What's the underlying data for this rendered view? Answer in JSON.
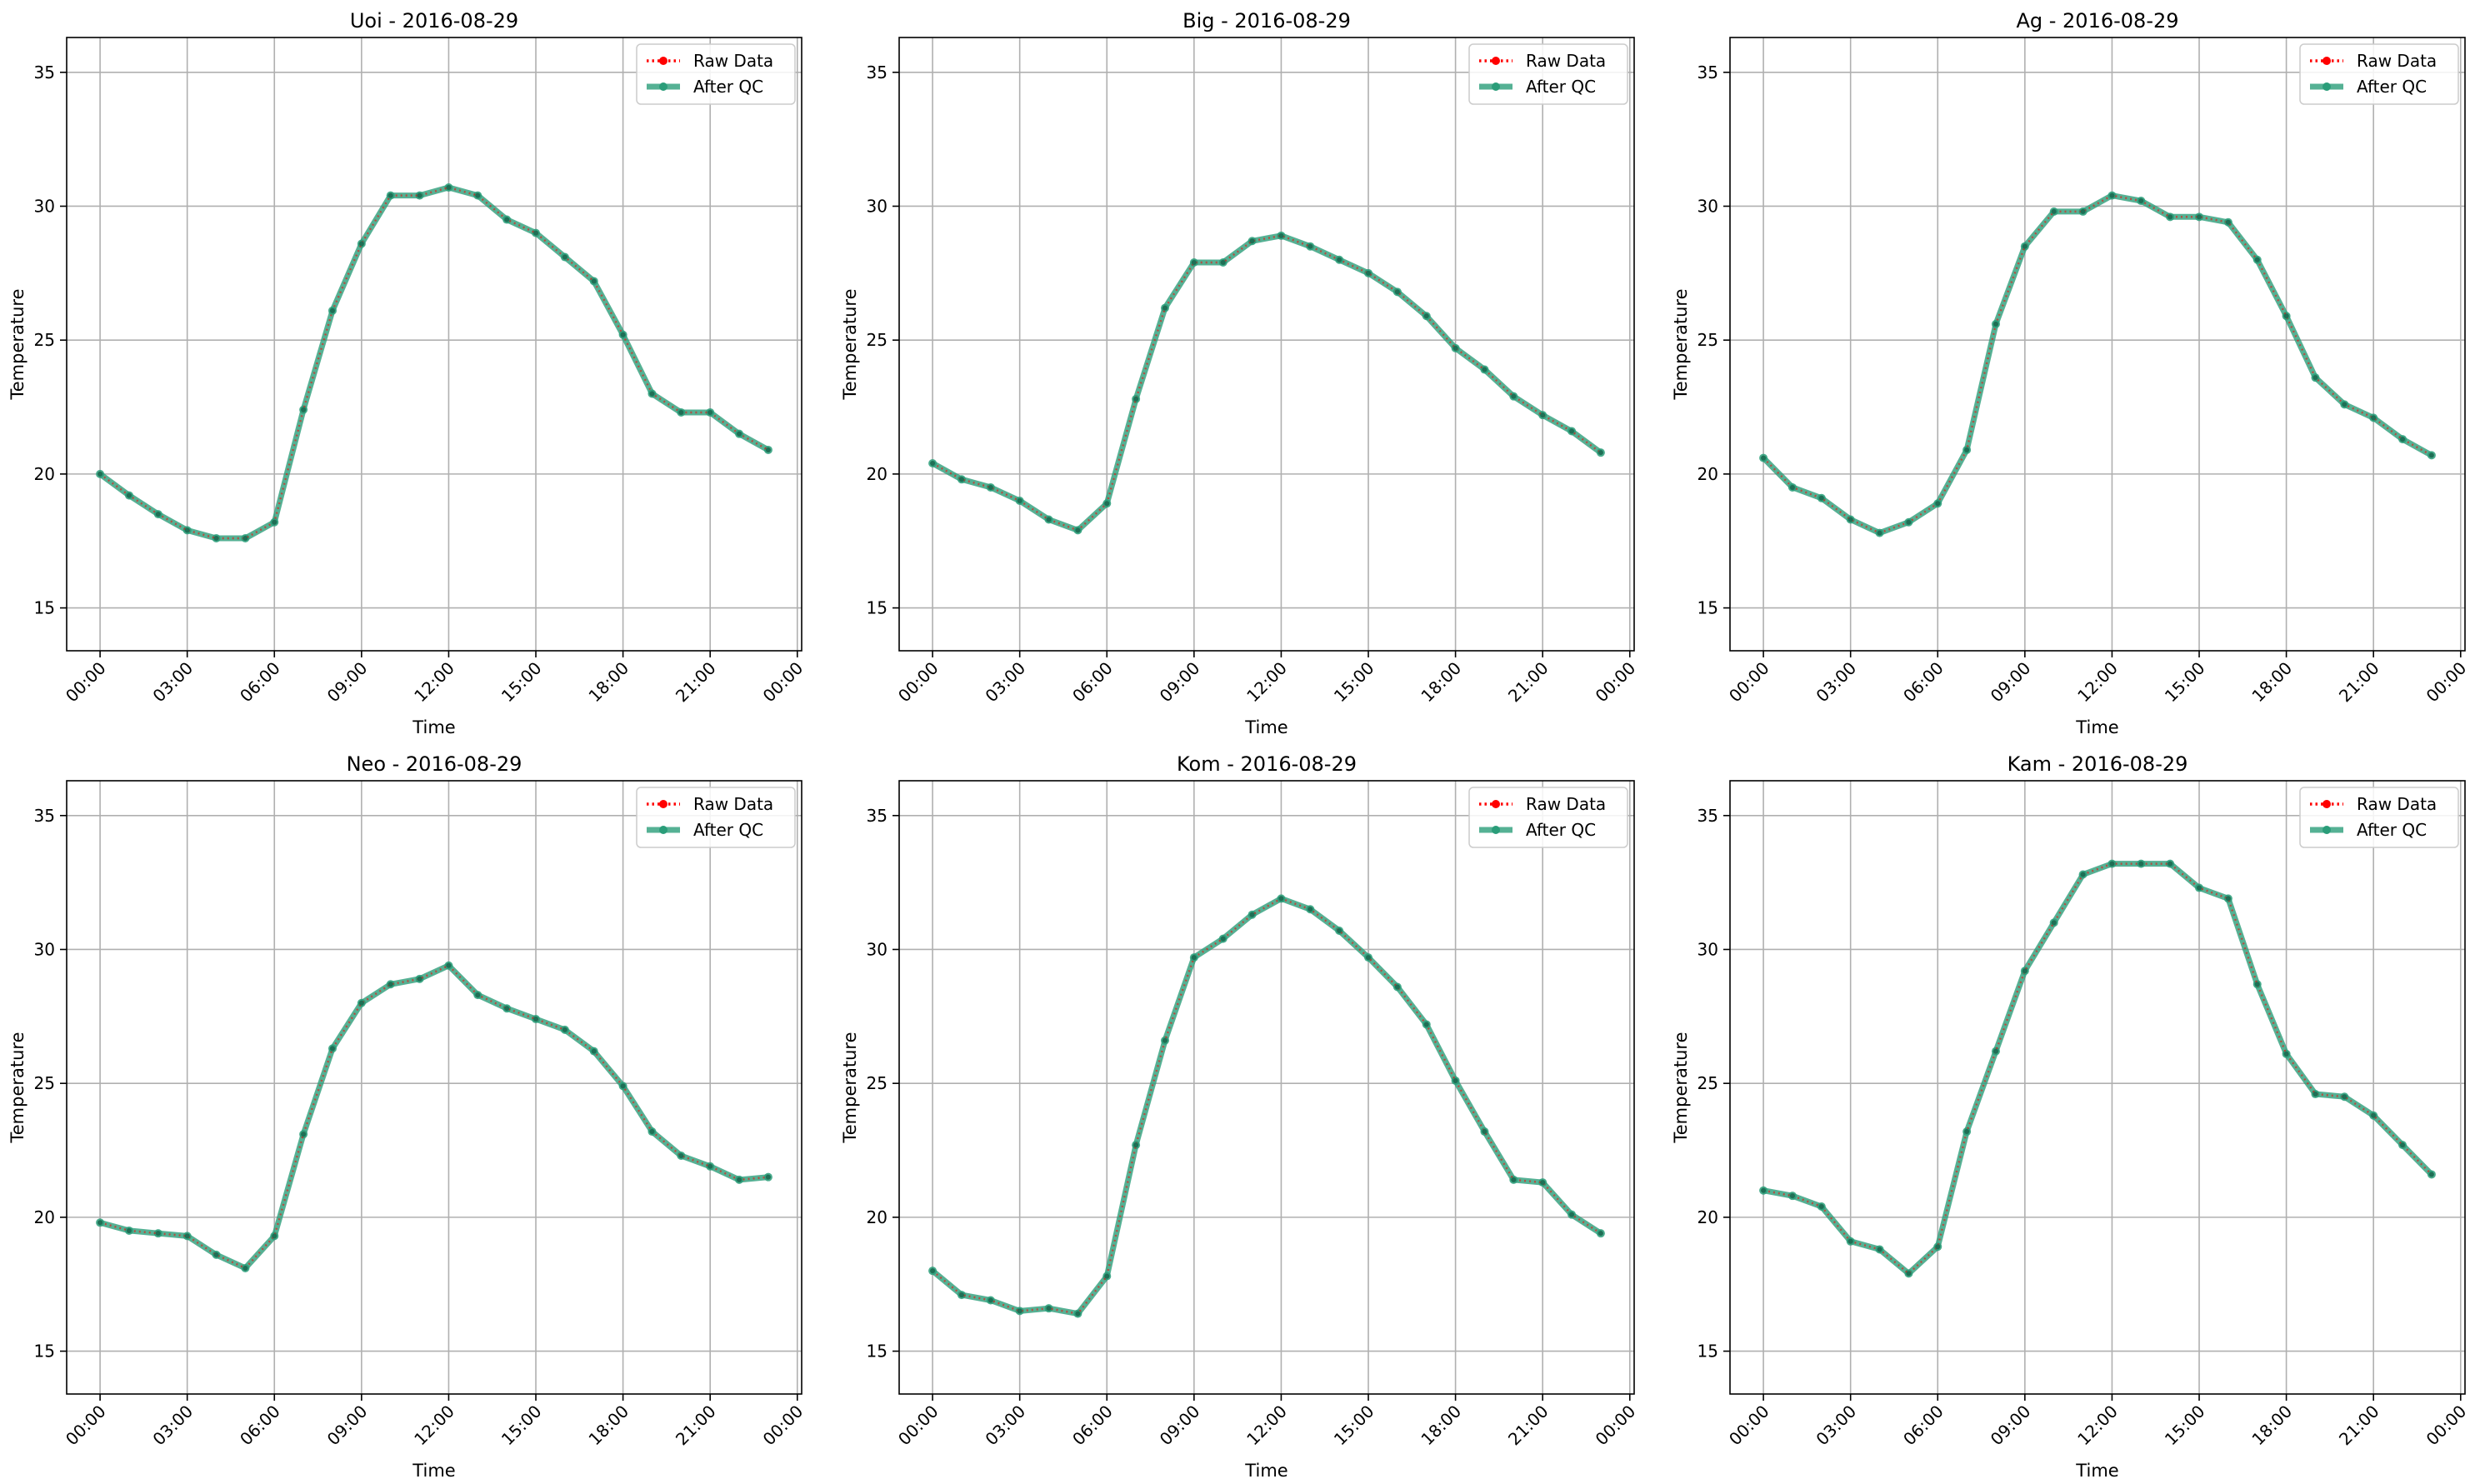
{
  "chart_data": [
    {
      "type": "line",
      "title": "Uoi - 2016-08-29",
      "xlabel": "Time",
      "ylabel": "Temperature",
      "xticks": [
        "00:00",
        "03:00",
        "06:00",
        "09:00",
        "12:00",
        "15:00",
        "18:00",
        "21:00",
        "00:00"
      ],
      "yticks": [
        15,
        20,
        25,
        30,
        35
      ],
      "ylim": [
        13.4,
        36.3
      ],
      "xlim_hours": [
        -1.15,
        24.15
      ],
      "grid": true,
      "legend_position": "top-right",
      "x_hours": [
        0,
        1,
        2,
        3,
        4,
        5,
        6,
        7,
        8,
        9,
        10,
        11,
        12,
        13,
        14,
        15,
        16,
        17,
        18,
        19,
        20,
        21,
        22,
        23
      ],
      "series": [
        {
          "name": "Raw Data",
          "color": "#ff0000",
          "style": "dotted",
          "values": [
            20.0,
            19.2,
            18.5,
            17.9,
            17.6,
            17.6,
            18.2,
            22.4,
            26.1,
            28.6,
            30.4,
            30.4,
            30.7,
            30.4,
            29.5,
            29.0,
            28.1,
            27.2,
            25.2,
            23.0,
            22.3,
            22.3,
            21.5,
            20.9
          ]
        },
        {
          "name": "After QC",
          "color": "#2a9d79",
          "style": "solid",
          "values": [
            20.0,
            19.2,
            18.5,
            17.9,
            17.6,
            17.6,
            18.2,
            22.4,
            26.1,
            28.6,
            30.4,
            30.4,
            30.7,
            30.4,
            29.5,
            29.0,
            28.1,
            27.2,
            25.2,
            23.0,
            22.3,
            22.3,
            21.5,
            20.9
          ]
        }
      ]
    },
    {
      "type": "line",
      "title": "Big - 2016-08-29",
      "xlabel": "Time",
      "ylabel": "Temperature",
      "xticks": [
        "00:00",
        "03:00",
        "06:00",
        "09:00",
        "12:00",
        "15:00",
        "18:00",
        "21:00",
        "00:00"
      ],
      "yticks": [
        15,
        20,
        25,
        30,
        35
      ],
      "ylim": [
        13.4,
        36.3
      ],
      "xlim_hours": [
        -1.15,
        24.15
      ],
      "grid": true,
      "legend_position": "top-right",
      "x_hours": [
        0,
        1,
        2,
        3,
        4,
        5,
        6,
        7,
        8,
        9,
        10,
        11,
        12,
        13,
        14,
        15,
        16,
        17,
        18,
        19,
        20,
        21,
        22,
        23
      ],
      "series": [
        {
          "name": "Raw Data",
          "color": "#ff0000",
          "style": "dotted",
          "values": [
            20.4,
            19.8,
            19.5,
            19.0,
            18.3,
            17.9,
            18.9,
            22.8,
            26.2,
            27.9,
            27.9,
            28.7,
            28.9,
            28.5,
            28.0,
            27.5,
            26.8,
            25.9,
            24.7,
            23.9,
            22.9,
            22.2,
            21.6,
            20.8
          ]
        },
        {
          "name": "After QC",
          "color": "#2a9d79",
          "style": "solid",
          "values": [
            20.4,
            19.8,
            19.5,
            19.0,
            18.3,
            17.9,
            18.9,
            22.8,
            26.2,
            27.9,
            27.9,
            28.7,
            28.9,
            28.5,
            28.0,
            27.5,
            26.8,
            25.9,
            24.7,
            23.9,
            22.9,
            22.2,
            21.6,
            20.8
          ]
        }
      ]
    },
    {
      "type": "line",
      "title": "Ag - 2016-08-29",
      "xlabel": "Time",
      "ylabel": "Temperature",
      "xticks": [
        "00:00",
        "03:00",
        "06:00",
        "09:00",
        "12:00",
        "15:00",
        "18:00",
        "21:00",
        "00:00"
      ],
      "yticks": [
        15,
        20,
        25,
        30,
        35
      ],
      "ylim": [
        13.4,
        36.3
      ],
      "xlim_hours": [
        -1.15,
        24.15
      ],
      "grid": true,
      "legend_position": "top-right",
      "x_hours": [
        0,
        1,
        2,
        3,
        4,
        5,
        6,
        7,
        8,
        9,
        10,
        11,
        12,
        13,
        14,
        15,
        16,
        17,
        18,
        19,
        20,
        21,
        22,
        23
      ],
      "series": [
        {
          "name": "Raw Data",
          "color": "#ff0000",
          "style": "dotted",
          "values": [
            20.6,
            19.5,
            19.1,
            18.3,
            17.8,
            18.2,
            18.9,
            20.9,
            25.6,
            28.5,
            29.8,
            29.8,
            30.4,
            30.2,
            29.6,
            29.6,
            29.4,
            28.0,
            25.9,
            23.6,
            22.6,
            22.1,
            21.3,
            20.7
          ]
        },
        {
          "name": "After QC",
          "color": "#2a9d79",
          "style": "solid",
          "values": [
            20.6,
            19.5,
            19.1,
            18.3,
            17.8,
            18.2,
            18.9,
            20.9,
            25.6,
            28.5,
            29.8,
            29.8,
            30.4,
            30.2,
            29.6,
            29.6,
            29.4,
            28.0,
            25.9,
            23.6,
            22.6,
            22.1,
            21.3,
            20.7
          ]
        }
      ]
    },
    {
      "type": "line",
      "title": "Neo - 2016-08-29",
      "xlabel": "Time",
      "ylabel": "Temperature",
      "xticks": [
        "00:00",
        "03:00",
        "06:00",
        "09:00",
        "12:00",
        "15:00",
        "18:00",
        "21:00",
        "00:00"
      ],
      "yticks": [
        15,
        20,
        25,
        30,
        35
      ],
      "ylim": [
        13.4,
        36.3
      ],
      "xlim_hours": [
        -1.15,
        24.15
      ],
      "grid": true,
      "legend_position": "top-right",
      "x_hours": [
        0,
        1,
        2,
        3,
        4,
        5,
        6,
        7,
        8,
        9,
        10,
        11,
        12,
        13,
        14,
        15,
        16,
        17,
        18,
        19,
        20,
        21,
        22,
        23
      ],
      "series": [
        {
          "name": "Raw Data",
          "color": "#ff0000",
          "style": "dotted",
          "values": [
            19.8,
            19.5,
            19.4,
            19.3,
            18.6,
            18.1,
            19.3,
            23.1,
            26.3,
            28.0,
            28.7,
            28.9,
            29.4,
            28.3,
            27.8,
            27.4,
            27.0,
            26.2,
            24.9,
            23.2,
            22.3,
            21.9,
            21.4,
            21.5
          ]
        },
        {
          "name": "After QC",
          "color": "#2a9d79",
          "style": "solid",
          "values": [
            19.8,
            19.5,
            19.4,
            19.3,
            18.6,
            18.1,
            19.3,
            23.1,
            26.3,
            28.0,
            28.7,
            28.9,
            29.4,
            28.3,
            27.8,
            27.4,
            27.0,
            26.2,
            24.9,
            23.2,
            22.3,
            21.9,
            21.4,
            21.5
          ]
        }
      ]
    },
    {
      "type": "line",
      "title": "Kom - 2016-08-29",
      "xlabel": "Time",
      "ylabel": "Temperature",
      "xticks": [
        "00:00",
        "03:00",
        "06:00",
        "09:00",
        "12:00",
        "15:00",
        "18:00",
        "21:00",
        "00:00"
      ],
      "yticks": [
        15,
        20,
        25,
        30,
        35
      ],
      "ylim": [
        13.4,
        36.3
      ],
      "xlim_hours": [
        -1.15,
        24.15
      ],
      "grid": true,
      "legend_position": "top-right",
      "x_hours": [
        0,
        1,
        2,
        3,
        4,
        5,
        6,
        7,
        8,
        9,
        10,
        11,
        12,
        13,
        14,
        15,
        16,
        17,
        18,
        19,
        20,
        21,
        22,
        23
      ],
      "series": [
        {
          "name": "Raw Data",
          "color": "#ff0000",
          "style": "dotted",
          "values": [
            18.0,
            17.1,
            16.9,
            16.5,
            16.6,
            16.4,
            17.8,
            22.7,
            26.6,
            29.7,
            30.4,
            31.3,
            31.9,
            31.5,
            30.7,
            29.7,
            28.6,
            27.2,
            25.1,
            23.2,
            21.4,
            21.3,
            20.1,
            19.4
          ]
        },
        {
          "name": "After QC",
          "color": "#2a9d79",
          "style": "solid",
          "values": [
            18.0,
            17.1,
            16.9,
            16.5,
            16.6,
            16.4,
            17.8,
            22.7,
            26.6,
            29.7,
            30.4,
            31.3,
            31.9,
            31.5,
            30.7,
            29.7,
            28.6,
            27.2,
            25.1,
            23.2,
            21.4,
            21.3,
            20.1,
            19.4
          ]
        }
      ]
    },
    {
      "type": "line",
      "title": "Kam - 2016-08-29",
      "xlabel": "Time",
      "ylabel": "Temperature",
      "xticks": [
        "00:00",
        "03:00",
        "06:00",
        "09:00",
        "12:00",
        "15:00",
        "18:00",
        "21:00",
        "00:00"
      ],
      "yticks": [
        15,
        20,
        25,
        30,
        35
      ],
      "ylim": [
        13.4,
        36.3
      ],
      "xlim_hours": [
        -1.15,
        24.15
      ],
      "grid": true,
      "legend_position": "top-right",
      "x_hours": [
        0,
        1,
        2,
        3,
        4,
        5,
        6,
        7,
        8,
        9,
        10,
        11,
        12,
        13,
        14,
        15,
        16,
        17,
        18,
        19,
        20,
        21,
        22,
        23
      ],
      "series": [
        {
          "name": "Raw Data",
          "color": "#ff0000",
          "style": "dotted",
          "values": [
            21.0,
            20.8,
            20.4,
            19.1,
            18.8,
            17.9,
            18.9,
            23.2,
            26.2,
            29.2,
            31.0,
            32.8,
            33.2,
            33.2,
            33.2,
            32.3,
            31.9,
            28.7,
            26.1,
            24.6,
            24.5,
            23.8,
            22.7,
            21.6
          ]
        },
        {
          "name": "After QC",
          "color": "#2a9d79",
          "style": "solid",
          "values": [
            21.0,
            20.8,
            20.4,
            19.1,
            18.8,
            17.9,
            18.9,
            23.2,
            26.2,
            29.2,
            31.0,
            32.8,
            33.2,
            33.2,
            33.2,
            32.3,
            31.9,
            28.7,
            26.1,
            24.6,
            24.5,
            23.8,
            22.7,
            21.6
          ]
        }
      ]
    }
  ]
}
